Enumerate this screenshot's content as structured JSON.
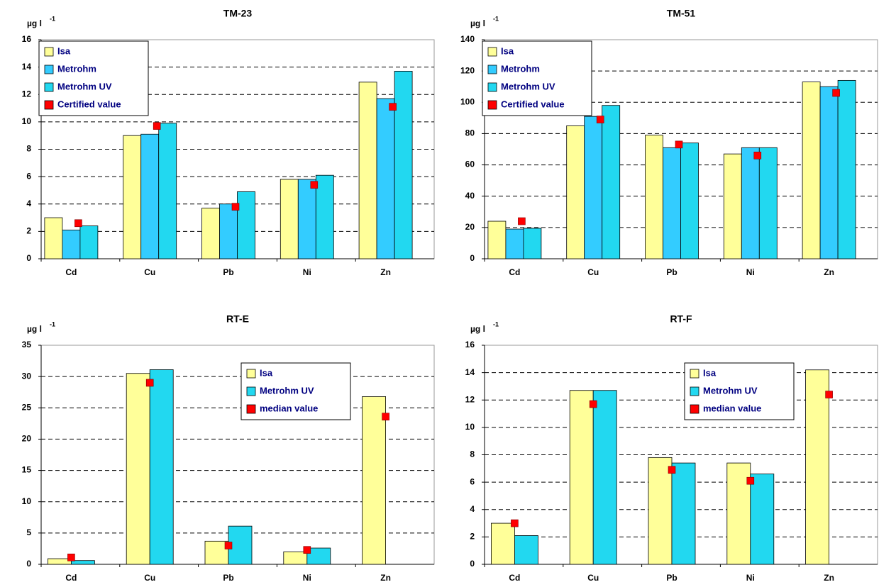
{
  "chart_data": [
    {
      "type": "bar",
      "title": "TM-23",
      "y_label": "µg l",
      "y_label_sup": "-1",
      "categories": [
        "Cd",
        "Cu",
        "Pb",
        "Ni",
        "Zn"
      ],
      "series": [
        {
          "name": "Isa",
          "color": "#ffff99",
          "type": "bar",
          "values": [
            3.0,
            9.0,
            3.7,
            5.8,
            12.9
          ]
        },
        {
          "name": "Metrohm",
          "color": "#33ccff",
          "type": "bar",
          "values": [
            2.1,
            9.1,
            4.0,
            5.8,
            11.7
          ]
        },
        {
          "name": "Metrohm UV",
          "color": "#22d8f0",
          "type": "bar",
          "values": [
            2.4,
            9.9,
            4.9,
            6.1,
            13.7
          ]
        },
        {
          "name": "Certified value",
          "color": "#ff0000",
          "type": "scatter",
          "values": [
            2.6,
            9.7,
            3.8,
            5.4,
            11.1
          ]
        }
      ],
      "ylim": [
        0,
        16
      ],
      "yticks": [
        0,
        2,
        4,
        6,
        8,
        10,
        12,
        14,
        16
      ],
      "grid": true,
      "legend": "upper left"
    },
    {
      "type": "bar",
      "title": "TM-51",
      "y_label": "µg l",
      "y_label_sup": "-1",
      "categories": [
        "Cd",
        "Cu",
        "Pb",
        "Ni",
        "Zn"
      ],
      "series": [
        {
          "name": "Isa",
          "color": "#ffff99",
          "type": "bar",
          "values": [
            24,
            85,
            79,
            67,
            113
          ]
        },
        {
          "name": "Metrohm",
          "color": "#33ccff",
          "type": "bar",
          "values": [
            19,
            91,
            71,
            71,
            110
          ]
        },
        {
          "name": "Metrohm UV",
          "color": "#22d8f0",
          "type": "bar",
          "values": [
            19.5,
            98,
            74,
            71,
            114
          ]
        },
        {
          "name": "Certified value",
          "color": "#ff0000",
          "type": "scatter",
          "values": [
            24,
            89,
            73,
            66,
            106
          ]
        }
      ],
      "ylim": [
        0,
        140
      ],
      "yticks": [
        0,
        20,
        40,
        60,
        80,
        100,
        120,
        140
      ],
      "grid": true,
      "legend": "upper left"
    },
    {
      "type": "bar",
      "title": "RT-E",
      "y_label": "µg l",
      "y_label_sup": "-1",
      "categories": [
        "Cd",
        "Cu",
        "Pb",
        "Ni",
        "Zn"
      ],
      "series": [
        {
          "name": "Isa",
          "color": "#ffff99",
          "type": "bar",
          "values": [
            0.9,
            30.5,
            3.7,
            2.0,
            26.8
          ]
        },
        {
          "name": "Metrohm UV",
          "color": "#22d8f0",
          "type": "bar",
          "values": [
            0.6,
            31.1,
            6.1,
            2.6,
            null
          ]
        },
        {
          "name": "median value",
          "color": "#ff0000",
          "type": "scatter",
          "values": [
            1.1,
            29.0,
            3.0,
            2.3,
            23.6
          ]
        }
      ],
      "ylim": [
        0,
        35
      ],
      "yticks": [
        0,
        5,
        10,
        15,
        20,
        25,
        30,
        35
      ],
      "grid": true,
      "legend": "upper center"
    },
    {
      "type": "bar",
      "title": "RT-F",
      "y_label": "µg l",
      "y_label_sup": "-1",
      "categories": [
        "Cd",
        "Cu",
        "Pb",
        "Ni",
        "Zn"
      ],
      "series": [
        {
          "name": "Isa",
          "color": "#ffff99",
          "type": "bar",
          "values": [
            3.0,
            12.7,
            7.8,
            7.4,
            14.2
          ]
        },
        {
          "name": "Metrohm UV",
          "color": "#22d8f0",
          "type": "bar",
          "values": [
            2.1,
            12.7,
            7.4,
            6.6,
            null
          ]
        },
        {
          "name": "median value",
          "color": "#ff0000",
          "type": "scatter",
          "values": [
            3.0,
            11.7,
            6.9,
            6.1,
            12.4
          ]
        }
      ],
      "ylim": [
        0,
        16
      ],
      "yticks": [
        0,
        2,
        4,
        6,
        8,
        10,
        12,
        14,
        16
      ],
      "grid": true,
      "legend": "upper center"
    }
  ]
}
